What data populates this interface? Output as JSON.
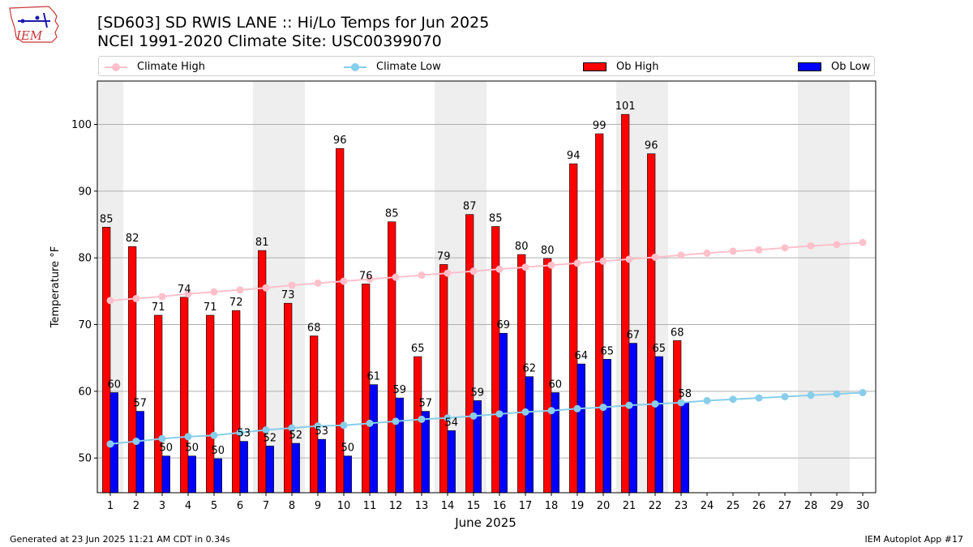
{
  "page": {
    "title_line1": "[SD603] SD RWIS LANE :: Hi/Lo Temps for Jun 2025",
    "title_line2": "NCEI 1991-2020 Climate Site: USC00399070",
    "logo_text": "IEM",
    "footer_left": "Generated at 23 Jun 2025 11:21 AM CDT in 0.34s",
    "footer_right": "IEM Autoplot App #17"
  },
  "legend": {
    "climate_high": "Climate High",
    "climate_low": "Climate Low",
    "ob_high": "Ob High",
    "ob_low": "Ob Low"
  },
  "colors": {
    "ob_high": "#ff0000",
    "ob_low": "#0000ff",
    "climate_high": "#ffc0cb",
    "climate_low": "#87ceeb",
    "weekend_shade": "#eeeeee",
    "grid": "#b0b0b0"
  },
  "chart_data": {
    "type": "bar",
    "title": "[SD603] SD RWIS LANE :: Hi/Lo Temps for Jun 2025",
    "xlabel": "June 2025",
    "ylabel": "Temperature °F",
    "ylim": [
      44.8,
      106.5
    ],
    "yticks": [
      50,
      60,
      70,
      80,
      90,
      100
    ],
    "grid": "horizontal",
    "categories": [
      "1",
      "2",
      "3",
      "4",
      "5",
      "6",
      "7",
      "8",
      "9",
      "10",
      "11",
      "12",
      "13",
      "14",
      "15",
      "16",
      "17",
      "18",
      "19",
      "20",
      "21",
      "22",
      "23",
      "24",
      "25",
      "26",
      "27",
      "28",
      "29",
      "30"
    ],
    "shaded_days": [
      1,
      7,
      8,
      14,
      15,
      21,
      22,
      28,
      29
    ],
    "series": [
      {
        "name": "Ob High",
        "kind": "bar",
        "values": [
          84.6,
          81.7,
          71.4,
          74.1,
          71.4,
          72.1,
          81.1,
          73.2,
          68.3,
          96.4,
          76.1,
          85.4,
          65.2,
          79.0,
          86.5,
          84.7,
          80.5,
          79.9,
          94.1,
          98.6,
          101.5,
          95.6,
          67.6,
          null,
          null,
          null,
          null,
          null,
          null,
          null
        ],
        "labels": [
          "85",
          "82",
          "71",
          "74",
          "71",
          "72",
          "81",
          "73",
          "68",
          "96",
          "76",
          "85",
          "65",
          "79",
          "87",
          "85",
          "80",
          "80",
          "94",
          "99",
          "101",
          "96",
          "68",
          "",
          "",
          "",
          "",
          "",
          "",
          ""
        ]
      },
      {
        "name": "Ob Low",
        "kind": "bar",
        "values": [
          59.8,
          57.0,
          50.3,
          50.3,
          49.9,
          52.5,
          51.8,
          52.2,
          52.8,
          50.3,
          61.0,
          59.0,
          57.0,
          54.1,
          58.6,
          68.7,
          62.2,
          59.8,
          64.1,
          64.8,
          67.2,
          65.2,
          58.4,
          null,
          null,
          null,
          null,
          null,
          null,
          null
        ],
        "labels": [
          "60",
          "57",
          "50",
          "50",
          "50",
          "53",
          "52",
          "52",
          "53",
          "50",
          "61",
          "59",
          "57",
          "54",
          "59",
          "69",
          "62",
          "60",
          "64",
          "65",
          "67",
          "65",
          "58",
          "",
          "",
          "",
          "",
          "",
          "",
          ""
        ]
      },
      {
        "name": "Climate High",
        "kind": "line",
        "values": [
          73.6,
          73.9,
          74.2,
          74.6,
          74.9,
          75.2,
          75.5,
          75.9,
          76.2,
          76.5,
          76.8,
          77.1,
          77.4,
          77.7,
          78.0,
          78.3,
          78.6,
          78.9,
          79.2,
          79.5,
          79.8,
          80.1,
          80.4,
          80.7,
          81.0,
          81.2,
          81.5,
          81.8,
          82.0,
          82.3
        ]
      },
      {
        "name": "Climate Low",
        "kind": "line",
        "values": [
          52.1,
          52.5,
          52.9,
          53.2,
          53.4,
          53.8,
          54.2,
          54.5,
          54.8,
          54.9,
          55.2,
          55.5,
          55.8,
          56.0,
          56.3,
          56.6,
          56.9,
          57.1,
          57.4,
          57.6,
          57.9,
          58.1,
          58.3,
          58.6,
          58.8,
          59.0,
          59.2,
          59.4,
          59.6,
          59.8
        ]
      }
    ]
  }
}
